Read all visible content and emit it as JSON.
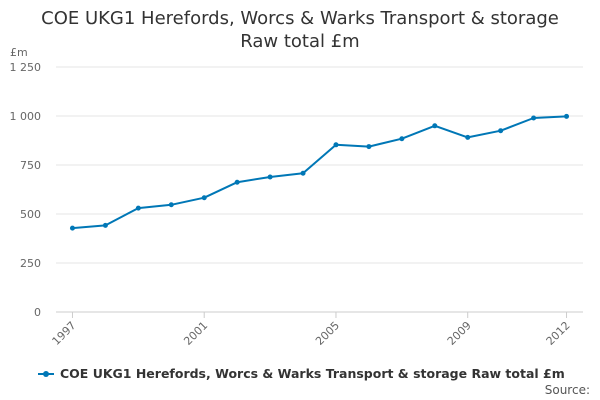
{
  "chart_data": {
    "type": "line",
    "title": "COE UKG1 Herefords, Worcs & Warks Transport & storage",
    "subtitle": "Raw total £m",
    "ylabel": "£m",
    "xlabel": "",
    "ylim": [
      0,
      1250
    ],
    "yticks": [
      "0",
      "250",
      "500",
      "750",
      "1 000",
      "1 250"
    ],
    "ytick_values": [
      0,
      250,
      500,
      750,
      1000,
      1250
    ],
    "xticks": [
      "1997",
      "2001",
      "2005",
      "2009",
      "2012"
    ],
    "xtick_values": [
      1997,
      2001,
      2005,
      2009,
      2012
    ],
    "grid": "horizontal",
    "legend_position": "bottom",
    "x": [
      1997,
      1998,
      1999,
      2000,
      2001,
      2002,
      2003,
      2004,
      2005,
      2006,
      2007,
      2008,
      2009,
      2010,
      2011,
      2012
    ],
    "series": [
      {
        "name": "COE UKG1 Herefords, Worcs & Warks Transport & storage Raw total £m",
        "color": "#0077b6",
        "values": [
          428,
          442,
          530,
          547,
          583,
          662,
          689,
          708,
          853,
          844,
          884,
          950,
          891,
          925,
          990,
          998
        ]
      }
    ]
  },
  "source_label": "Source:"
}
